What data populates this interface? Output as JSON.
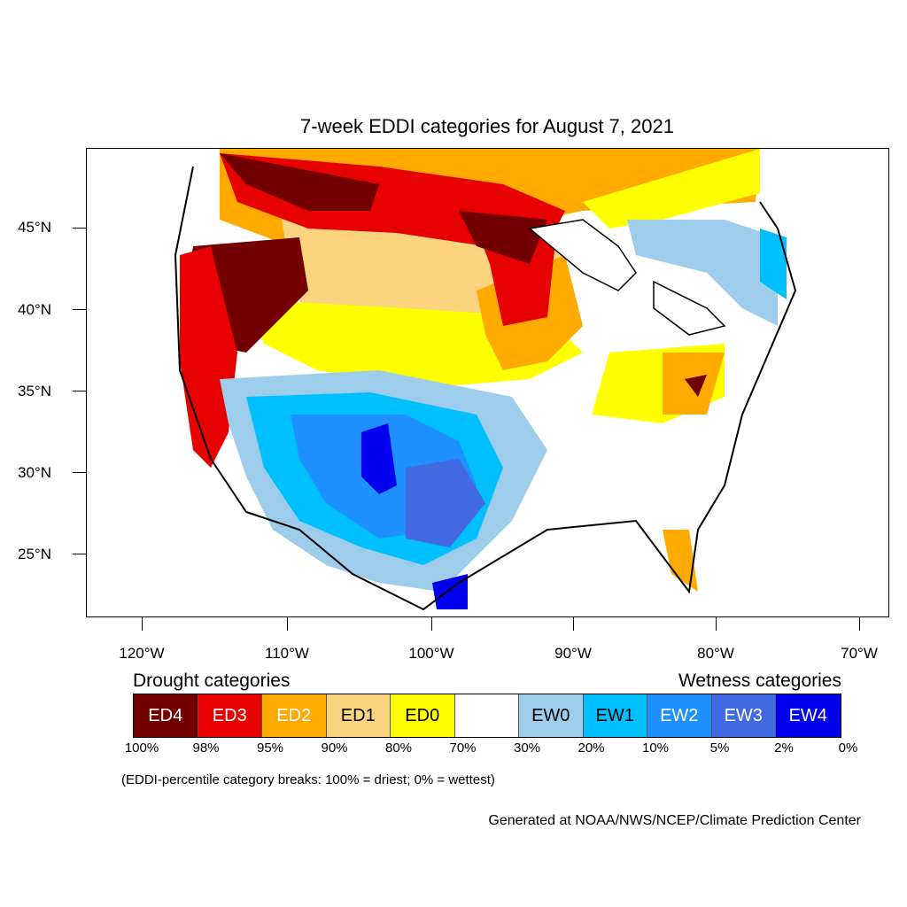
{
  "title": "7-week EDDI categories for August 7, 2021",
  "lat_labels": [
    "45°N",
    "40°N",
    "35°N",
    "30°N",
    "25°N"
  ],
  "lon_labels": [
    "120°W",
    "110°W",
    "100°W",
    "90°W",
    "80°W",
    "70°W"
  ],
  "legend": {
    "drought_heading": "Drought categories",
    "wetness_heading": "Wetness categories",
    "categories": [
      {
        "label": "ED4",
        "color": "#730000",
        "text_color": "#ffffff"
      },
      {
        "label": "ED3",
        "color": "#e60000",
        "text_color": "#ffffff"
      },
      {
        "label": "ED2",
        "color": "#ffaa00",
        "text_color": "#ffffff"
      },
      {
        "label": "ED1",
        "color": "#fcd37f",
        "text_color": "#000000"
      },
      {
        "label": "ED0",
        "color": "#ffff00",
        "text_color": "#000000"
      },
      {
        "label": "",
        "color": "#ffffff",
        "text_color": "#000000"
      },
      {
        "label": "EW0",
        "color": "#9dcdeb",
        "text_color": "#000000"
      },
      {
        "label": "EW1",
        "color": "#00bfff",
        "text_color": "#000000"
      },
      {
        "label": "EW2",
        "color": "#1e90ff",
        "text_color": "#ffffff"
      },
      {
        "label": "EW3",
        "color": "#4169e1",
        "text_color": "#ffffff"
      },
      {
        "label": "EW4",
        "color": "#0000ee",
        "text_color": "#ffffff"
      }
    ],
    "percent_breaks": [
      "100%",
      "98%",
      "95%",
      "90%",
      "80%",
      "70%",
      "30%",
      "20%",
      "10%",
      "5%",
      "2%",
      "0%"
    ]
  },
  "note": "(EDDI-percentile category breaks: 100% = driest; 0% = wettest)",
  "credit": "Generated at NOAA/NWS/NCEP/Climate Prediction Center"
}
